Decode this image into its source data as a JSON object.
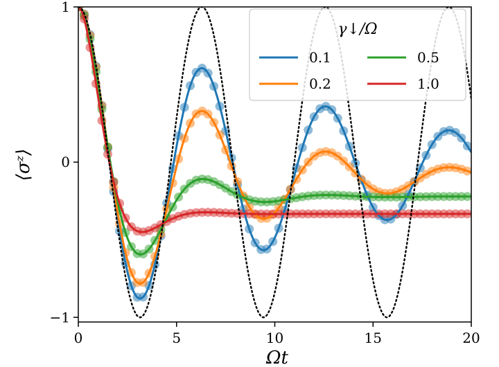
{
  "chart_data": {
    "type": "line",
    "title": "",
    "xlabel": "Ωt",
    "ylabel": "⟨σᶻ⟩",
    "xlim": [
      0,
      20
    ],
    "ylim": [
      -1.03,
      1.0
    ],
    "xticks": [
      0,
      5,
      10,
      15,
      20
    ],
    "yticks": [
      -1,
      0,
      1
    ],
    "grid": false,
    "legend": {
      "title": "γ↓/Ω",
      "placement": "top-right",
      "columns": 2
    },
    "reference_curve": {
      "style": "dotted",
      "color": "#000000",
      "formula": "cos(Ωt)"
    },
    "series": [
      {
        "name": "0.1",
        "gamma": 0.1,
        "color": "#1f77b4"
      },
      {
        "name": "0.2",
        "gamma": 0.2,
        "color": "#ff7f0e"
      },
      {
        "name": "0.5",
        "gamma": 0.5,
        "color": "#2ca02c"
      },
      {
        "name": "1.0",
        "gamma": 1.0,
        "color": "#d62728"
      }
    ],
    "markers": {
      "shape": "circle",
      "alpha": 0.5,
      "spacing_x": 0.3
    }
  }
}
